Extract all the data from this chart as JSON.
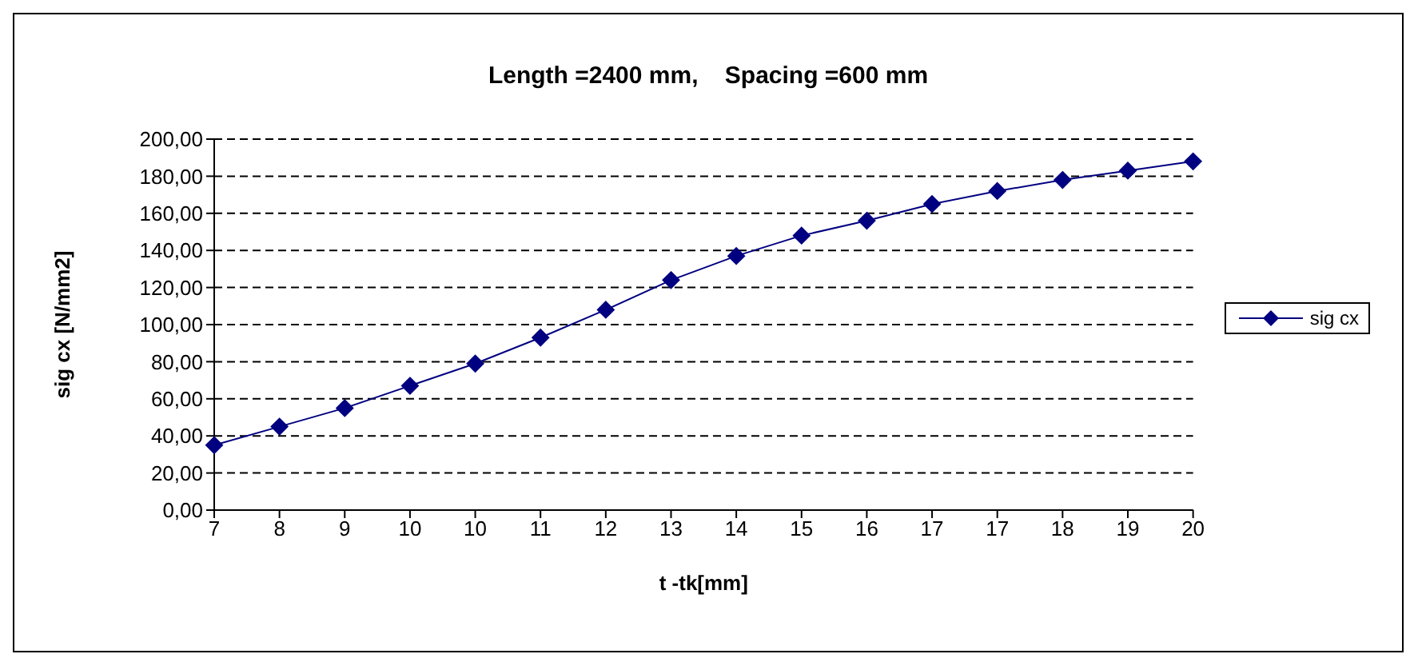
{
  "chart_data": {
    "type": "line",
    "title": "Length =2400 mm,    Spacing =600 mm",
    "xlabel": "t -tk[mm]",
    "ylabel": "sig cx [N/mm2]",
    "categories": [
      "7",
      "8",
      "9",
      "10",
      "10",
      "11",
      "12",
      "13",
      "14",
      "15",
      "16",
      "17",
      "17",
      "18",
      "19",
      "20"
    ],
    "series": [
      {
        "name": "sig cx",
        "color": "#000080",
        "values": [
          35,
          45,
          55,
          67,
          79,
          93,
          108,
          124,
          137,
          148,
          156,
          165,
          172,
          178,
          183,
          188
        ]
      }
    ],
    "ylim": [
      0,
      200
    ],
    "yticks": [
      {
        "value": 0,
        "label": "0,00"
      },
      {
        "value": 20,
        "label": "20,00"
      },
      {
        "value": 40,
        "label": "40,00"
      },
      {
        "value": 60,
        "label": "60,00"
      },
      {
        "value": 80,
        "label": "80,00"
      },
      {
        "value": 100,
        "label": "100,00"
      },
      {
        "value": 120,
        "label": "120,00"
      },
      {
        "value": 140,
        "label": "140,00"
      },
      {
        "value": 160,
        "label": "160,00"
      },
      {
        "value": 180,
        "label": "180,00"
      },
      {
        "value": 200,
        "label": "200,00"
      }
    ],
    "grid": "y",
    "legend": "right",
    "marker": "diamond",
    "line_style": "solid"
  }
}
